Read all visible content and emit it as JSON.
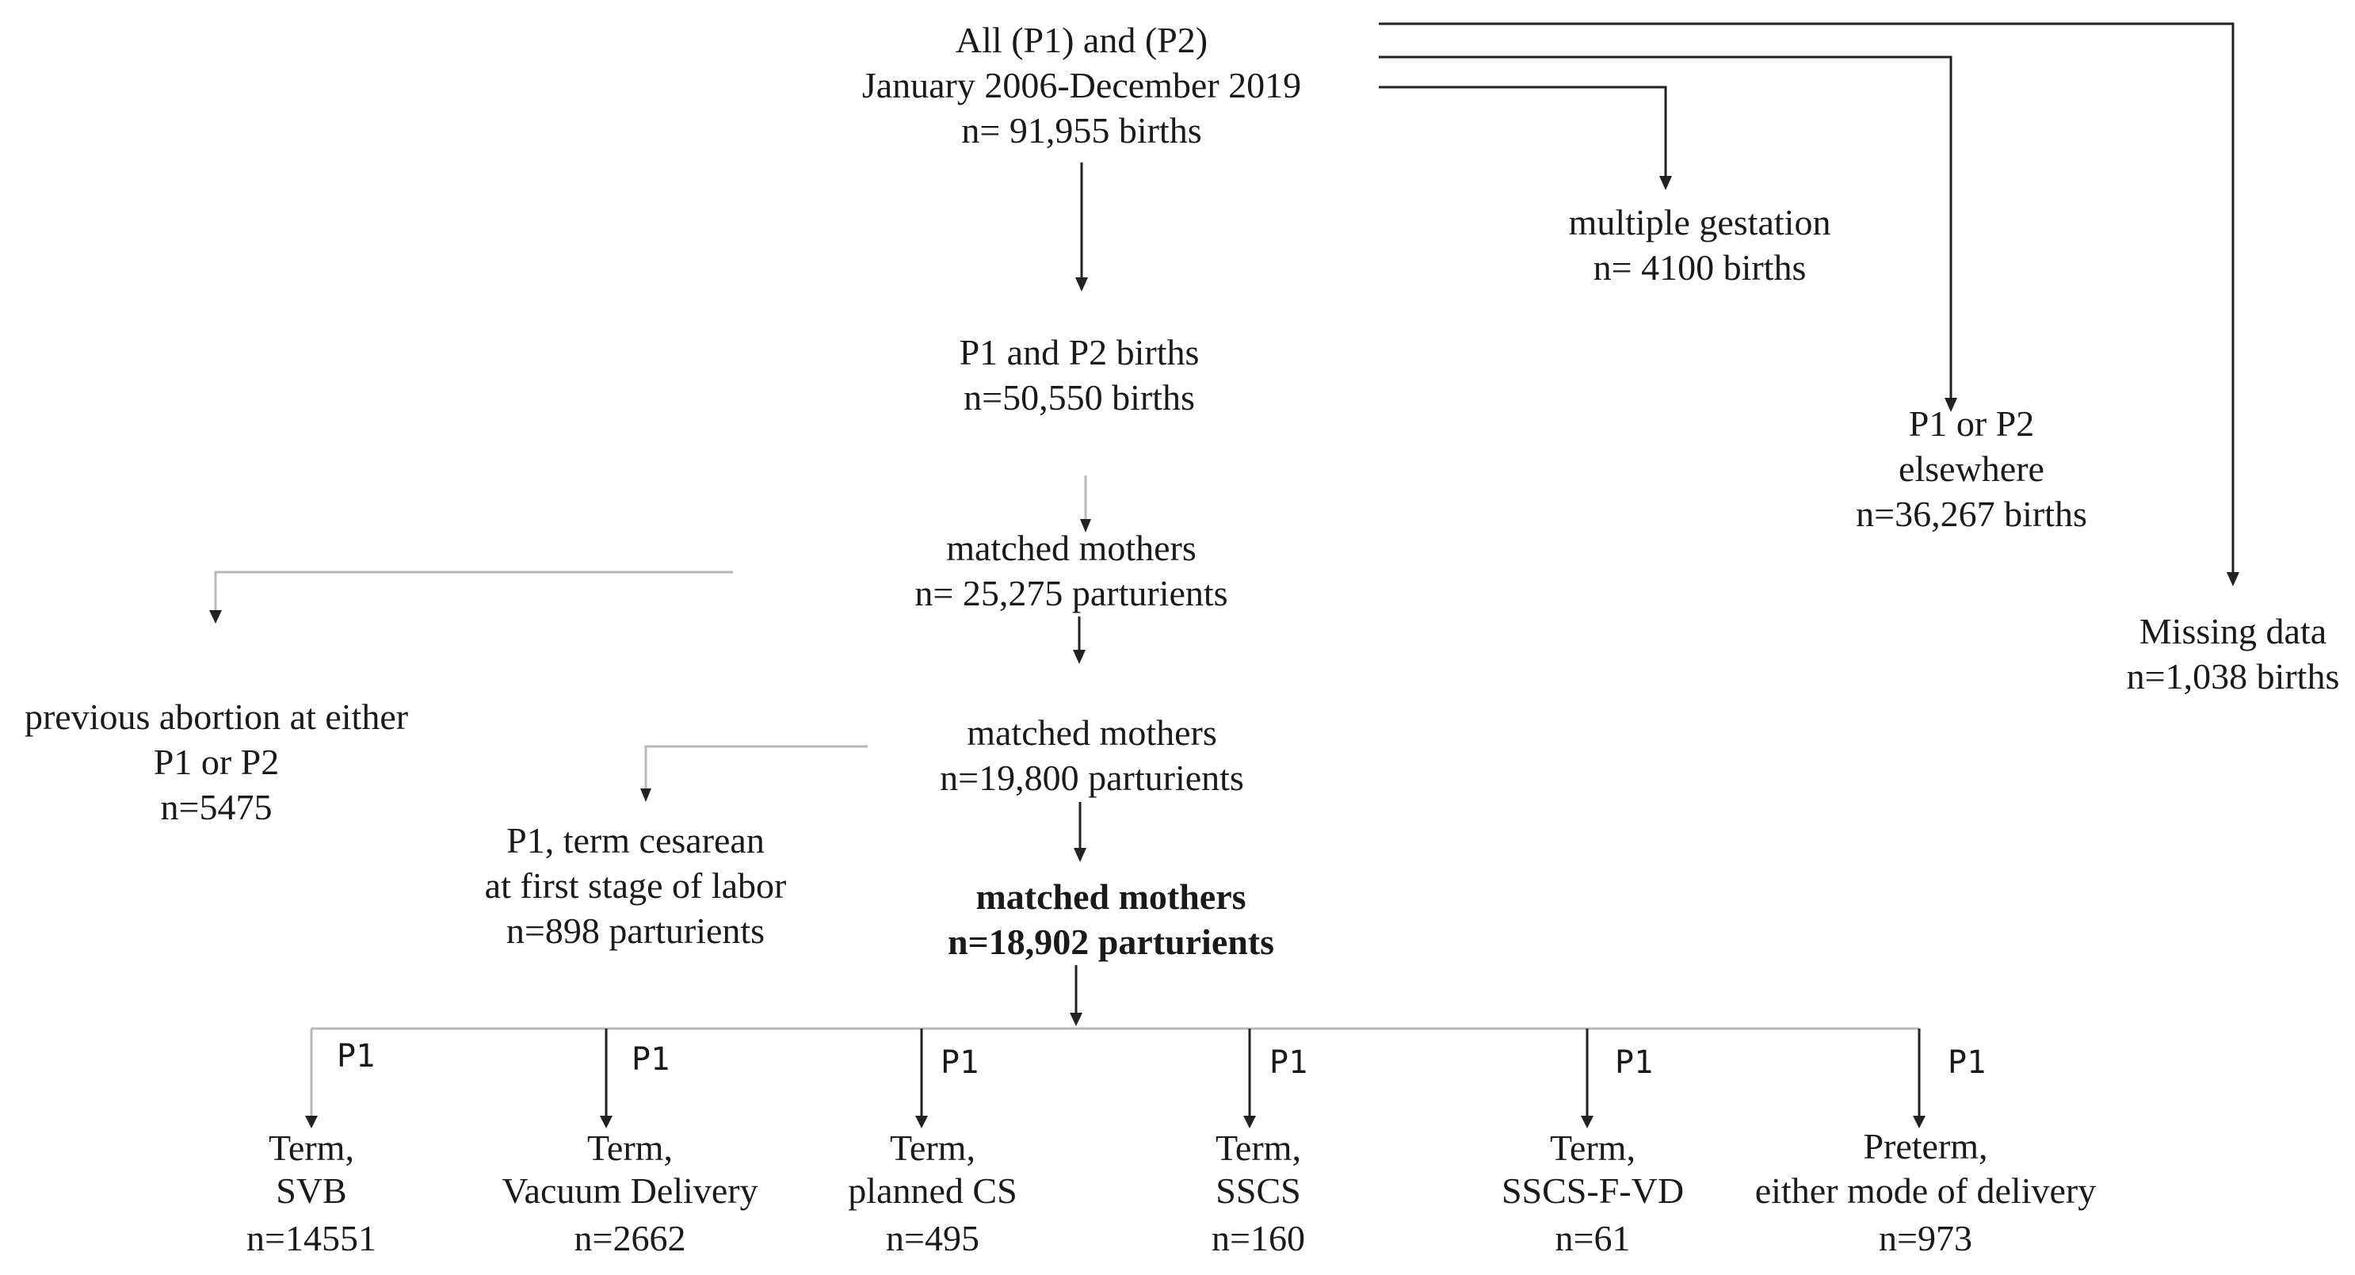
{
  "root": {
    "lines": [
      "All (P1) and (P2)",
      "January 2006-December 2019",
      "n= 91,955 births"
    ]
  },
  "exclusions": {
    "multiple_gestation": {
      "lines": [
        "multiple gestation",
        "n= 4100 births"
      ]
    },
    "elsewhere": {
      "lines": [
        "P1 or P2",
        "elsewhere",
        "n=36,267 births"
      ]
    },
    "missing": {
      "lines": [
        "Missing data",
        "n=1,038 births"
      ]
    },
    "abortion": {
      "lines": [
        "previous abortion at either",
        "P1 or P2",
        "n=5475"
      ]
    },
    "cesarean": {
      "lines": [
        "P1, term cesarean",
        "at first stage of labor",
        "n=898 parturients"
      ]
    }
  },
  "steps": [
    {
      "lines": [
        "P1 and P2 births",
        "n=50,550 births"
      ]
    },
    {
      "lines": [
        "matched mothers",
        "n= 25,275 parturients"
      ]
    },
    {
      "lines": [
        "matched mothers",
        "n=19,800 parturients"
      ]
    },
    {
      "lines": [
        "matched mothers",
        "n=18,902 parturients"
      ]
    }
  ],
  "outcomes": [
    {
      "tag": "P1",
      "lines": [
        "Term,",
        "SVB",
        "n=14551"
      ]
    },
    {
      "tag": "P1",
      "lines": [
        "Term,",
        "Vacuum Delivery",
        "n=2662"
      ]
    },
    {
      "tag": "P1",
      "lines": [
        "Term,",
        "planned CS",
        "n=495"
      ]
    },
    {
      "tag": "P1",
      "lines": [
        "Term,",
        "SSCS",
        "n=160"
      ]
    },
    {
      "tag": "P1",
      "lines": [
        "Term,",
        "SSCS-F-VD",
        "n=61"
      ]
    },
    {
      "tag": "P1",
      "lines": [
        "Preterm,",
        "either mode of delivery",
        "n=973"
      ]
    }
  ]
}
